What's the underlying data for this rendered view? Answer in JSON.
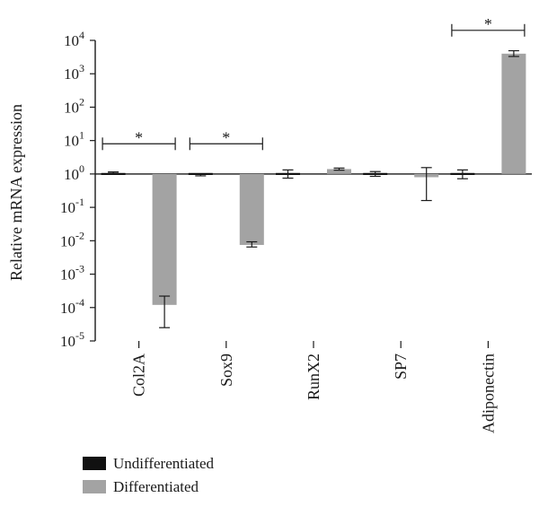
{
  "chart_data": {
    "type": "bar",
    "scale": "log",
    "baseline": 1,
    "ylabel": "Relative mRNA expression",
    "xlabel": "",
    "title": "",
    "ylim": [
      1e-05,
      10000
    ],
    "y_ticks": [
      {
        "value": 1e-05,
        "base": "10",
        "exp": "-5"
      },
      {
        "value": 0.0001,
        "base": "10",
        "exp": "-4"
      },
      {
        "value": 0.001,
        "base": "10",
        "exp": "-3"
      },
      {
        "value": 0.01,
        "base": "10",
        "exp": "-2"
      },
      {
        "value": 0.1,
        "base": "10",
        "exp": "-1"
      },
      {
        "value": 1,
        "base": "10",
        "exp": "0"
      },
      {
        "value": 10,
        "base": "10",
        "exp": "1"
      },
      {
        "value": 100,
        "base": "10",
        "exp": "2"
      },
      {
        "value": 1000,
        "base": "10",
        "exp": "3"
      },
      {
        "value": 10000,
        "base": "10",
        "exp": "4"
      }
    ],
    "categories": [
      "Col2A",
      "Sox9",
      "RunX2",
      "SP7",
      "Adiponectin"
    ],
    "series": [
      {
        "name": "Undifferentiated",
        "color": "#111111",
        "values": [
          1.1,
          0.92,
          1.0,
          1.0,
          1.0
        ],
        "err_low": [
          1.05,
          0.88,
          0.75,
          0.85,
          0.72
        ],
        "err_high": [
          1.15,
          0.97,
          1.32,
          1.18,
          1.32
        ]
      },
      {
        "name": "Differentiated",
        "color": "#a3a3a3",
        "values": [
          0.00012,
          0.0075,
          1.4,
          0.8,
          4000
        ],
        "err_low": [
          2.5e-05,
          0.0065,
          1.3,
          0.16,
          3300
        ],
        "err_high": [
          0.00022,
          0.0093,
          1.5,
          1.55,
          4900
        ]
      }
    ],
    "significance": [
      {
        "category_index": 0,
        "label": "*",
        "y": 8
      },
      {
        "category_index": 1,
        "label": "*",
        "y": 8
      },
      {
        "category_index": 4,
        "label": "*",
        "y": 20000
      }
    ],
    "legend_position": "bottom-left",
    "grid": false
  }
}
